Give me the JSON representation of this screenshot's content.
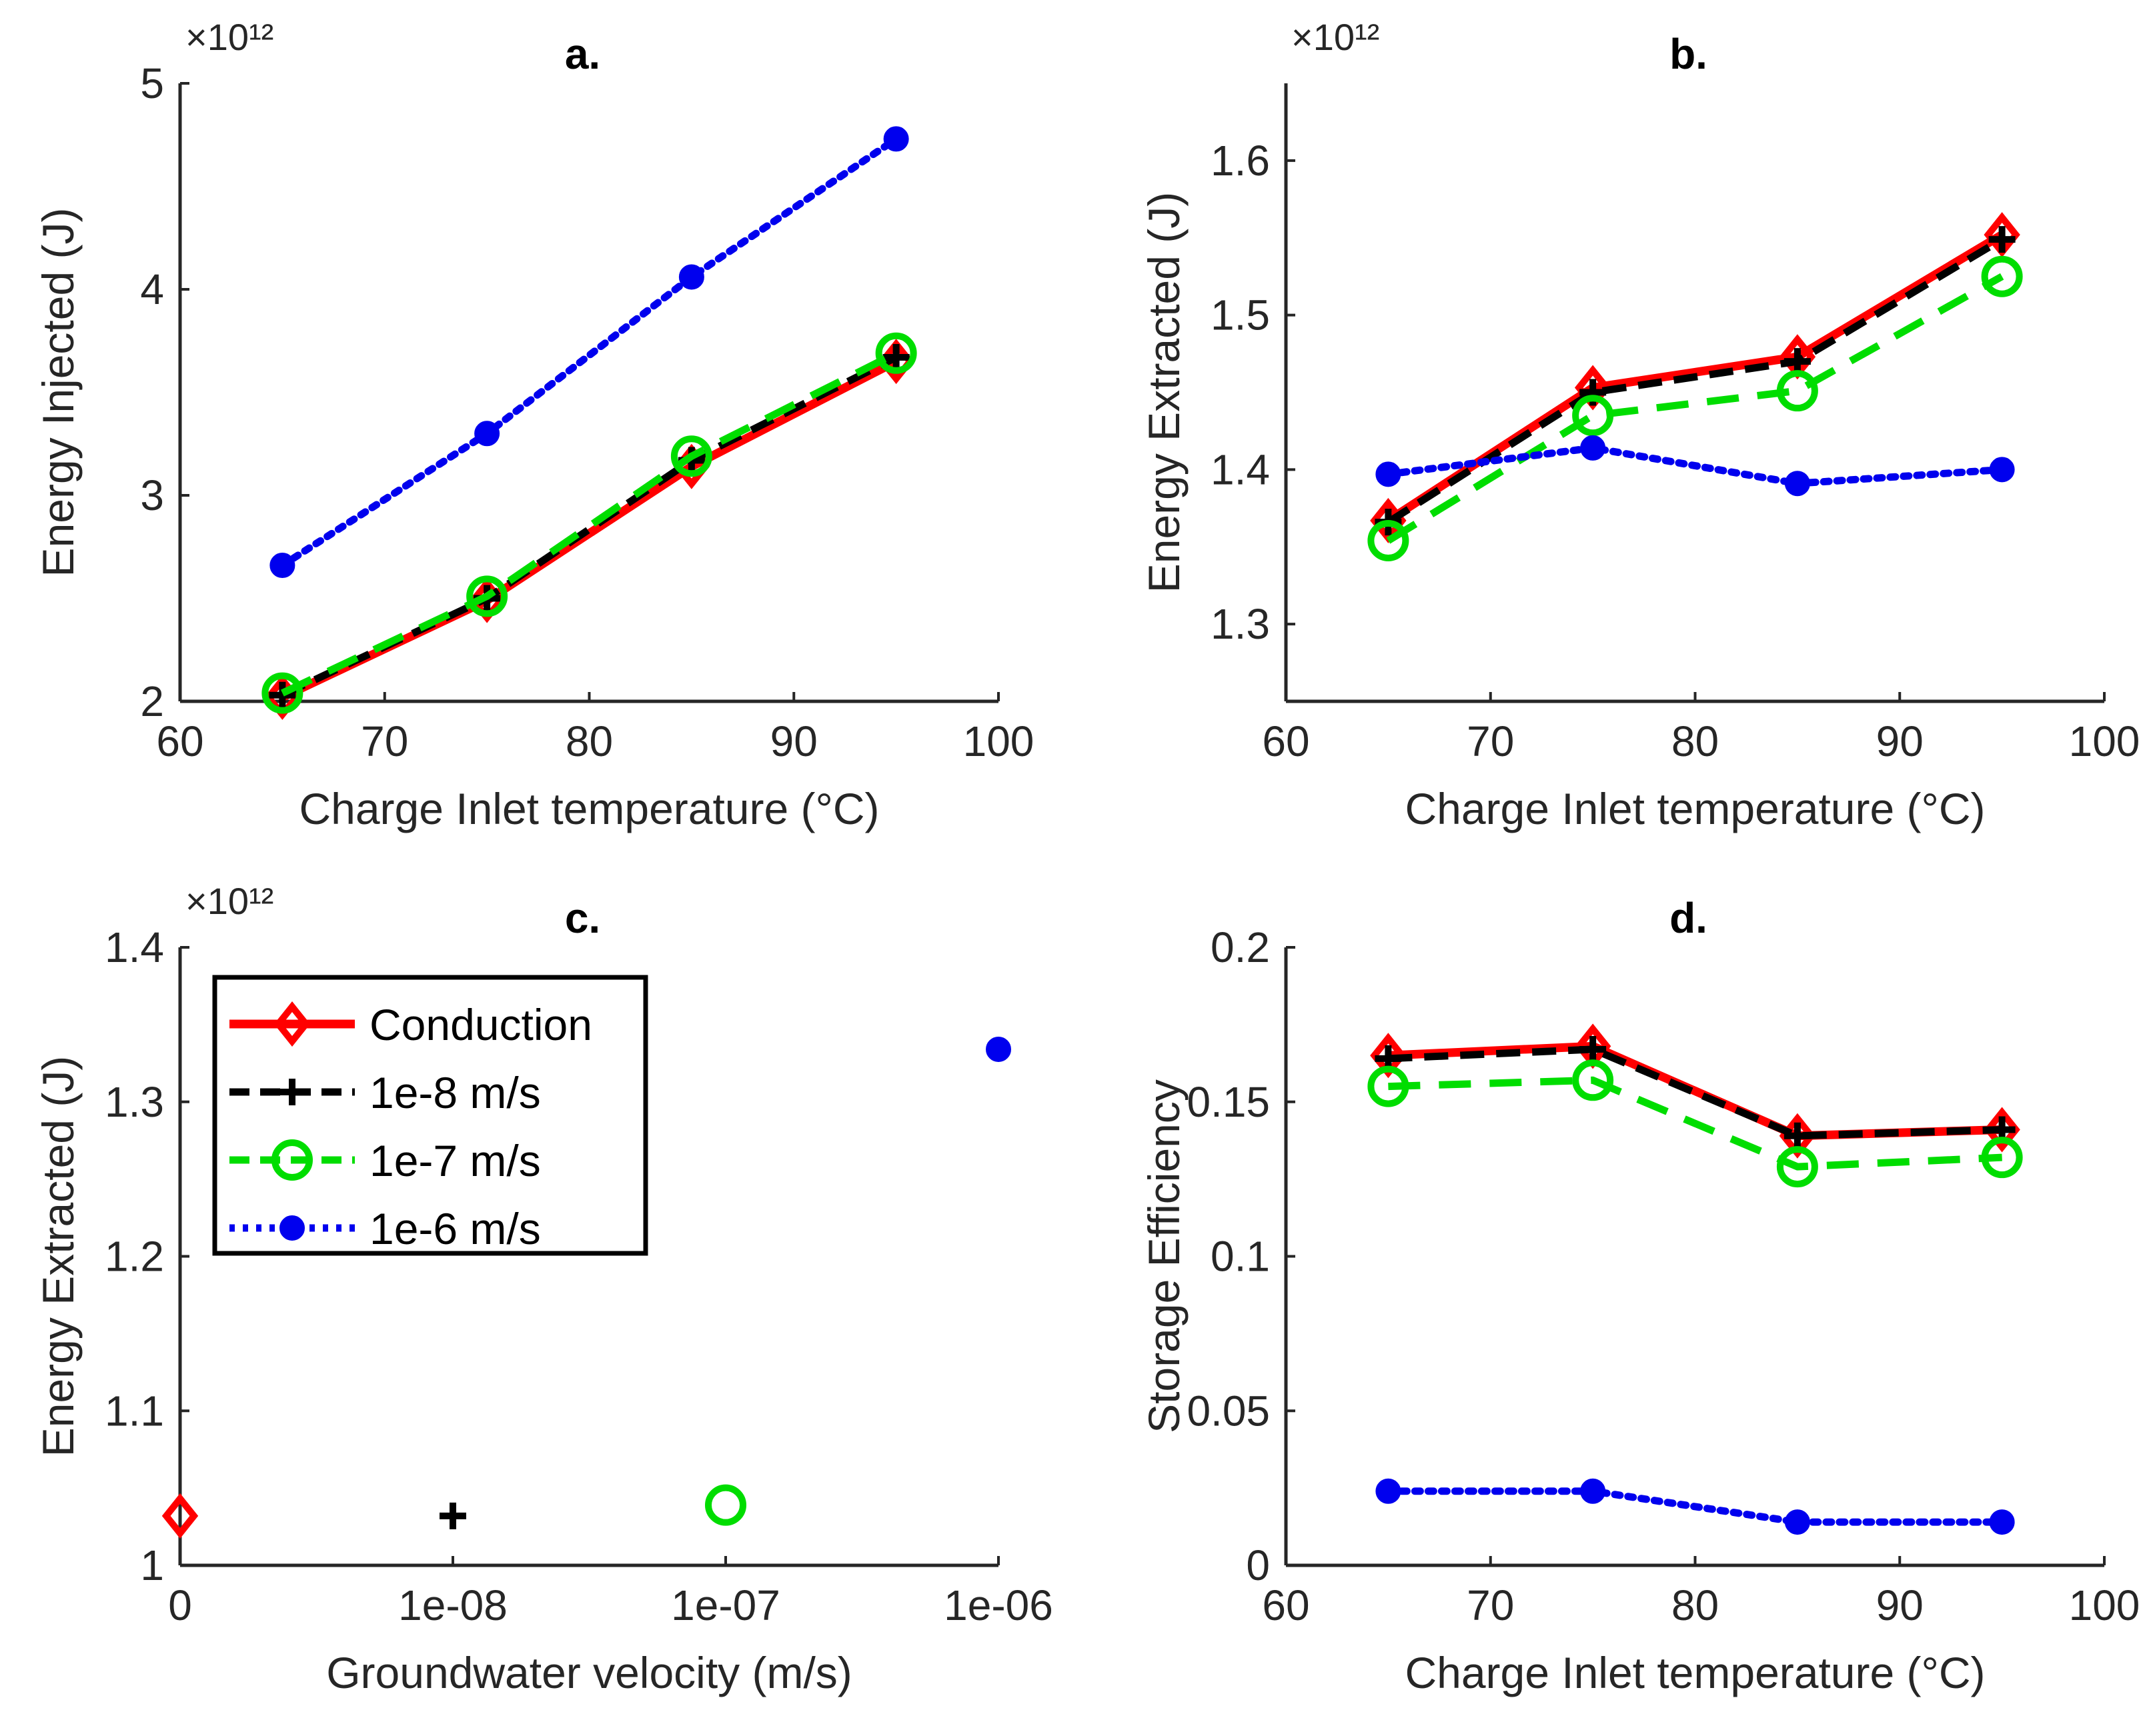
{
  "figure_title": "",
  "colors": {
    "conduction": "#ff0000",
    "v1e8": "#000000",
    "v1e7": "#00dd00",
    "v1e6": "#0000ee",
    "axis": "#262626"
  },
  "legend": {
    "entries": [
      {
        "label": "Conduction",
        "series_key": "conduction"
      },
      {
        "label": "1e-8 m/s",
        "series_key": "v1e8"
      },
      {
        "label": "1e-7 m/s",
        "series_key": "v1e7"
      },
      {
        "label": "1e-6 m/s",
        "series_key": "v1e6"
      }
    ]
  },
  "chart_data": [
    {
      "id": "a",
      "type": "line",
      "title": "a.",
      "xlabel": "Charge Inlet temperature  (°C)",
      "ylabel": "Energy Injected (J)",
      "y_exponent": "×10¹²",
      "xlim": [
        60,
        100
      ],
      "ylim": [
        2,
        5
      ],
      "xticks": [
        60,
        70,
        80,
        90,
        100
      ],
      "xtick_labels": [
        "60",
        "70",
        "80",
        "90",
        "100"
      ],
      "yticks": [
        2,
        3,
        4,
        5
      ],
      "ytick_labels": [
        "2",
        "3",
        "4",
        "5"
      ],
      "x": [
        65,
        75,
        85,
        95
      ],
      "series": [
        {
          "key": "conduction",
          "name": "Conduction",
          "values": [
            2.02,
            2.49,
            3.14,
            3.65
          ]
        },
        {
          "key": "v1e8",
          "name": "1e-8 m/s",
          "values": [
            2.03,
            2.5,
            3.17,
            3.67
          ]
        },
        {
          "key": "v1e7",
          "name": "1e-7 m/s",
          "values": [
            2.04,
            2.51,
            3.19,
            3.69
          ]
        },
        {
          "key": "v1e6",
          "name": "1e-6 m/s",
          "values": [
            2.66,
            3.3,
            4.06,
            4.73
          ]
        }
      ]
    },
    {
      "id": "b",
      "type": "line",
      "title": "b.",
      "xlabel": "Charge Inlet temperature  (°C)",
      "ylabel": "Energy Extracted (J)",
      "y_exponent": "×10¹²",
      "xlim": [
        60,
        100
      ],
      "ylim": [
        1.25,
        1.65
      ],
      "xticks": [
        60,
        70,
        80,
        90,
        100
      ],
      "xtick_labels": [
        "60",
        "70",
        "80",
        "90",
        "100"
      ],
      "yticks": [
        1.3,
        1.4,
        1.5,
        1.6
      ],
      "ytick_labels": [
        "1.3",
        "1.4",
        "1.5",
        "1.6"
      ],
      "x": [
        65,
        75,
        85,
        95
      ],
      "series": [
        {
          "key": "conduction",
          "name": "Conduction",
          "values": [
            1.367,
            1.453,
            1.473,
            1.552
          ]
        },
        {
          "key": "v1e8",
          "name": "1e-8 m/s",
          "values": [
            1.366,
            1.45,
            1.47,
            1.549
          ]
        },
        {
          "key": "v1e7",
          "name": "1e-7 m/s",
          "values": [
            1.354,
            1.435,
            1.451,
            1.525
          ]
        },
        {
          "key": "v1e6",
          "name": "1e-6 m/s",
          "values": [
            1.397,
            1.414,
            1.391,
            1.4
          ]
        }
      ]
    },
    {
      "id": "c",
      "type": "scatter",
      "title": "c.",
      "xlabel": "Groundwater velocity (m/s)",
      "ylabel": "Energy Extracted (J)",
      "y_exponent": "×10¹²",
      "xlim": [
        0,
        3
      ],
      "ylim": [
        1.0,
        1.4
      ],
      "xticks": [
        0,
        1,
        2,
        3
      ],
      "xtick_labels": [
        "0",
        "1e-08",
        "1e-07",
        "1e-06"
      ],
      "yticks": [
        1.0,
        1.1,
        1.2,
        1.3,
        1.4
      ],
      "ytick_labels": [
        "1",
        "1.1",
        "1.2",
        "1.3",
        "1.4"
      ],
      "series": [
        {
          "key": "conduction",
          "name": "Conduction",
          "x": [
            0
          ],
          "values": [
            1.032
          ]
        },
        {
          "key": "v1e8",
          "name": "1e-8 m/s",
          "x": [
            1
          ],
          "values": [
            1.032
          ]
        },
        {
          "key": "v1e7",
          "name": "1e-7 m/s",
          "x": [
            2
          ],
          "values": [
            1.039
          ]
        },
        {
          "key": "v1e6",
          "name": "1e-6 m/s",
          "x": [
            3
          ],
          "values": [
            1.334
          ]
        }
      ]
    },
    {
      "id": "d",
      "type": "line",
      "title": "d.",
      "xlabel": "Charge Inlet temperature  (°C)",
      "ylabel": "Storage Efficiency",
      "y_exponent": "",
      "xlim": [
        60,
        100
      ],
      "ylim": [
        0,
        0.2
      ],
      "xticks": [
        60,
        70,
        80,
        90,
        100
      ],
      "xtick_labels": [
        "60",
        "70",
        "80",
        "90",
        "100"
      ],
      "yticks": [
        0,
        0.05,
        0.1,
        0.15,
        0.2
      ],
      "ytick_labels": [
        "0",
        "0.05",
        "0.1",
        "0.15",
        "0.2"
      ],
      "x": [
        65,
        75,
        85,
        95
      ],
      "series": [
        {
          "key": "conduction",
          "name": "Conduction",
          "values": [
            0.165,
            0.168,
            0.139,
            0.141
          ]
        },
        {
          "key": "v1e8",
          "name": "1e-8 m/s",
          "values": [
            0.164,
            0.167,
            0.139,
            0.141
          ]
        },
        {
          "key": "v1e7",
          "name": "1e-7 m/s",
          "values": [
            0.155,
            0.157,
            0.129,
            0.132
          ]
        },
        {
          "key": "v1e6",
          "name": "1e-6 m/s",
          "values": [
            0.024,
            0.024,
            0.014,
            0.014
          ]
        }
      ]
    }
  ]
}
